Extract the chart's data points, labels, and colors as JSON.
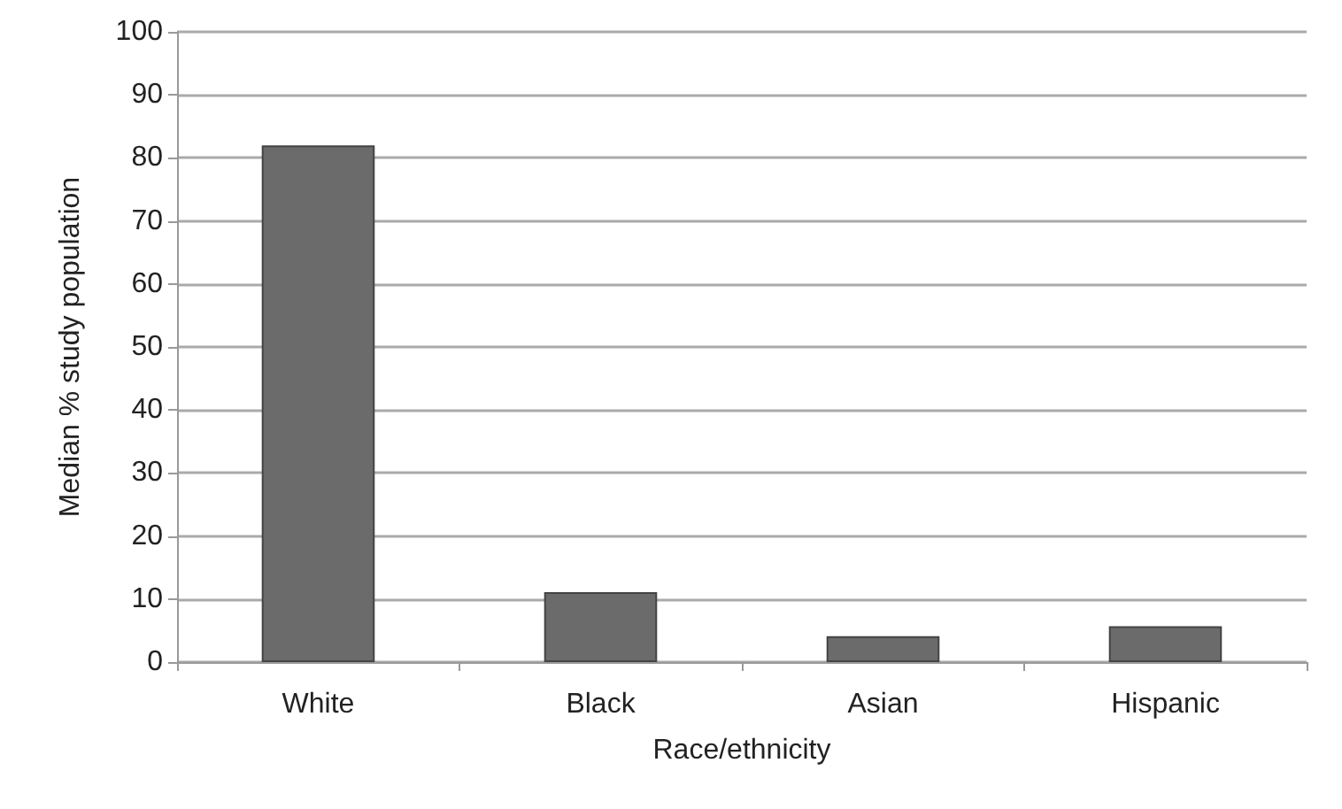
{
  "chart_data": {
    "type": "bar",
    "xlabel": "Race/ethnicity",
    "ylabel": "Median % study population",
    "categories": [
      "White",
      "Black",
      "Asian",
      "Hispanic"
    ],
    "values": [
      82,
      11.1,
      4.1,
      5.7
    ],
    "color": "#6b6b6b",
    "ylim": [
      0,
      100
    ],
    "yticks": [
      0,
      10,
      20,
      30,
      40,
      50,
      60,
      70,
      80,
      90,
      100
    ],
    "grid": "y"
  }
}
